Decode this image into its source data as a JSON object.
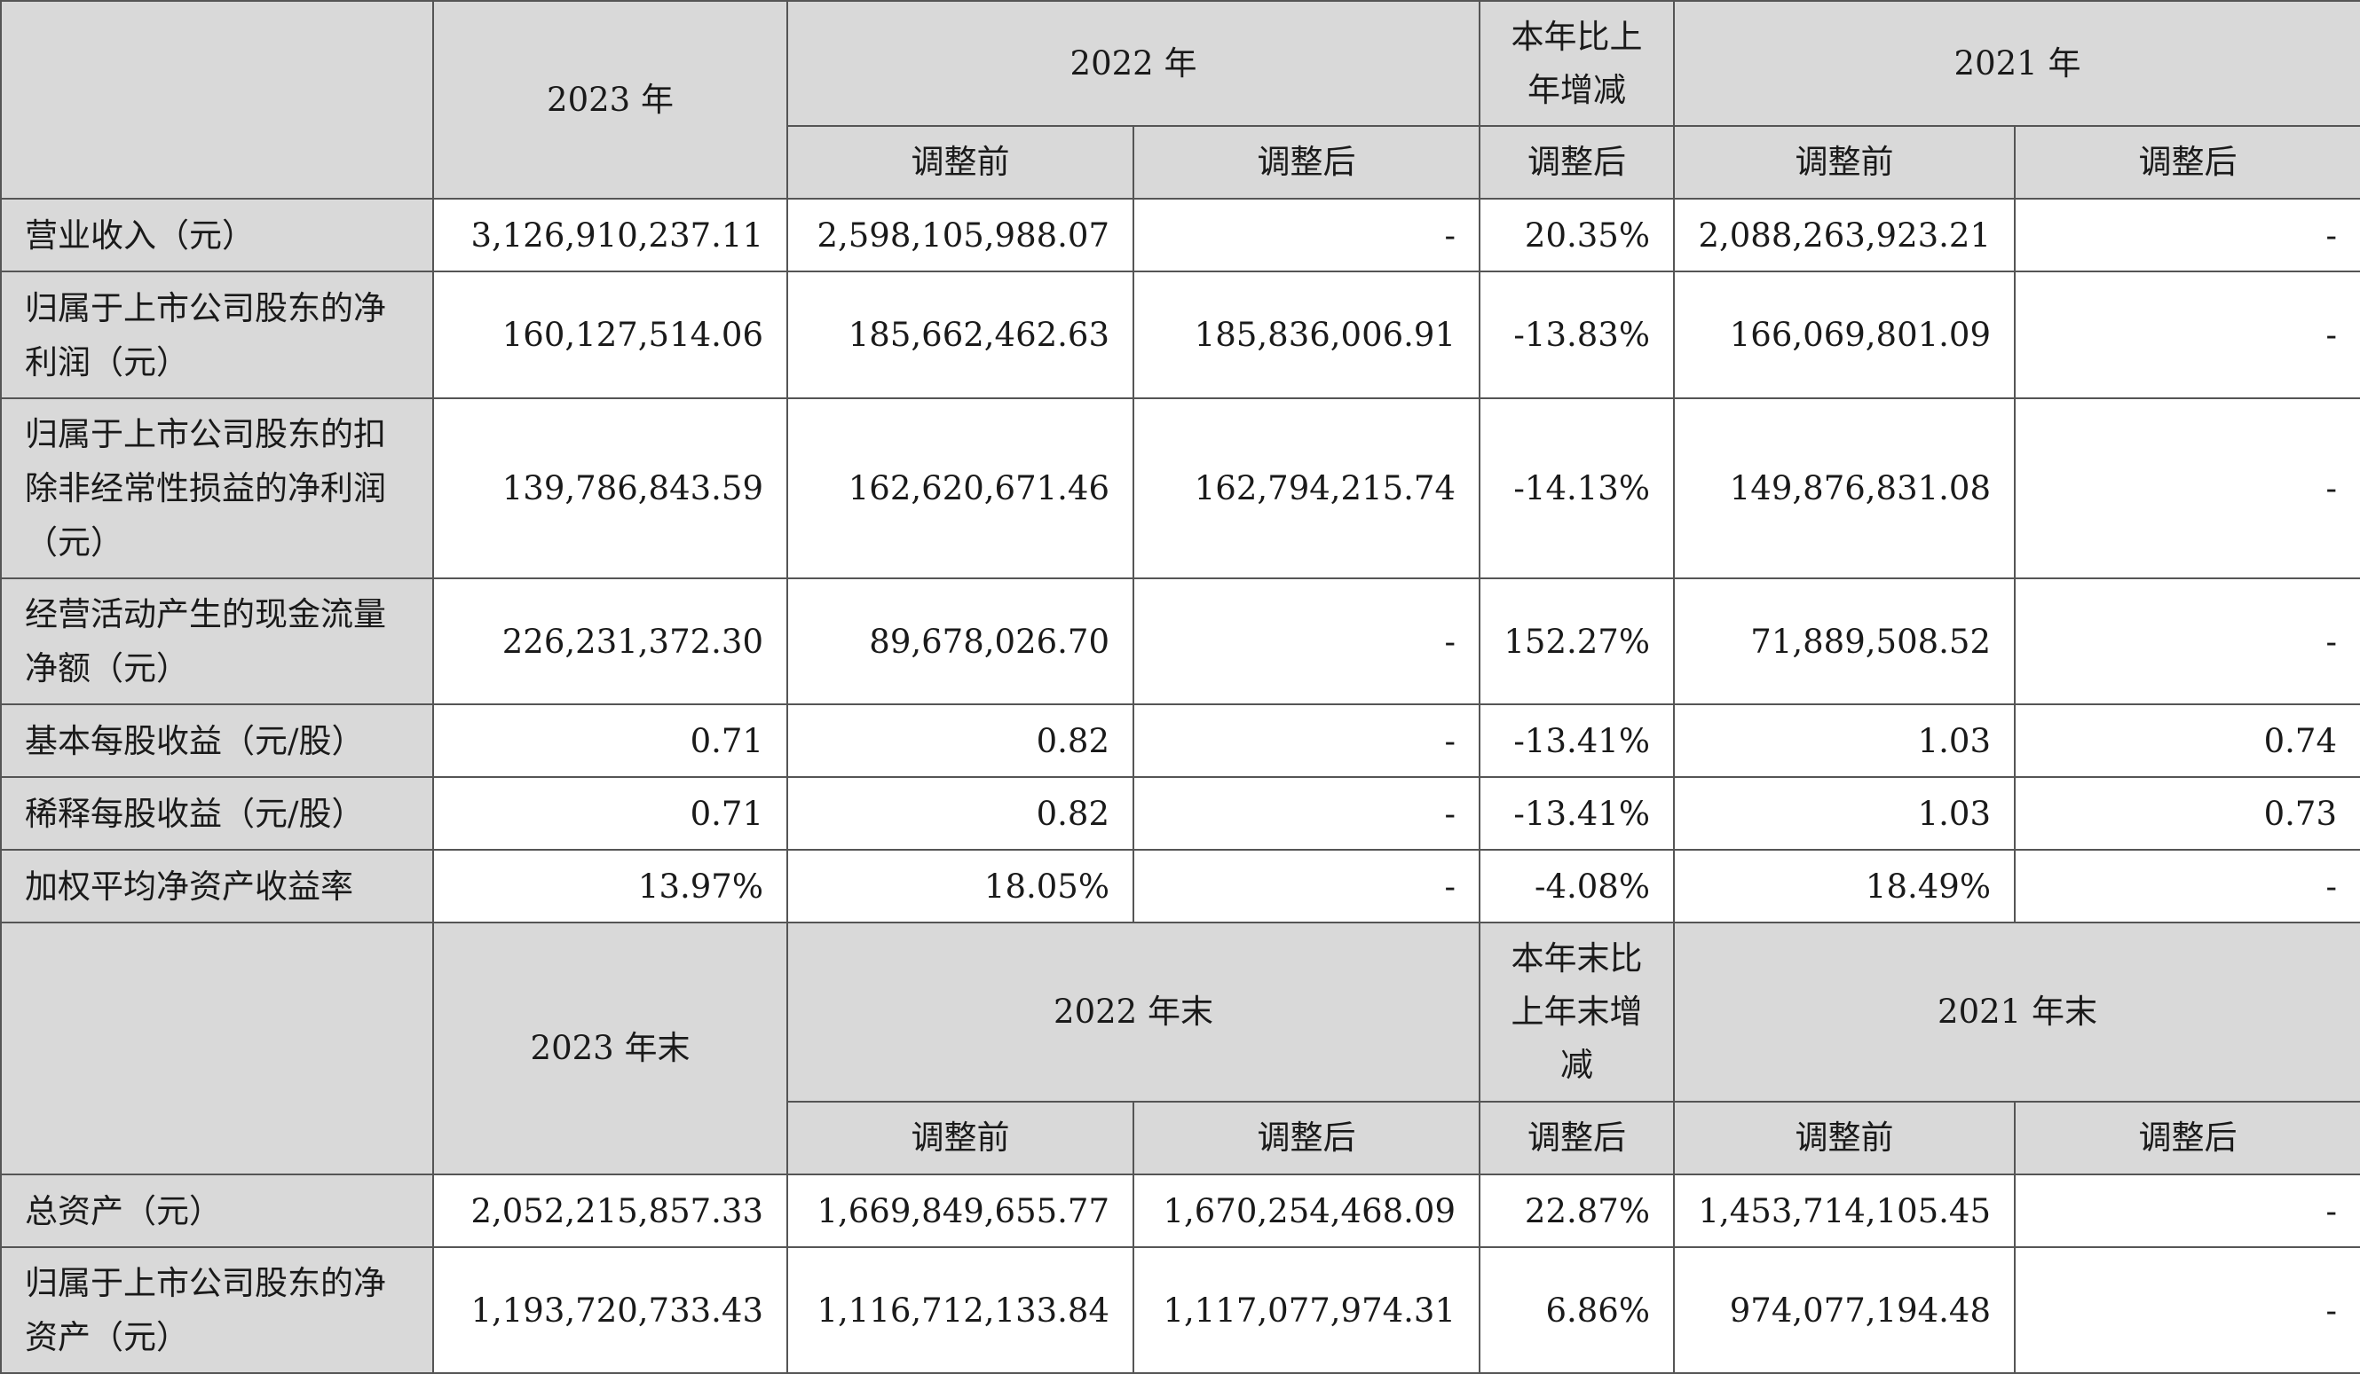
{
  "header1": {
    "col_2023": "2023 年",
    "col_2022": "2022 年",
    "col_change": "本年比上年增减",
    "col_2021": "2021 年",
    "sub_before": "调整前",
    "sub_after": "调整后"
  },
  "rows1": [
    {
      "label": "营业收入（元）",
      "v2023": "3,126,910,237.11",
      "v2022b": "2,598,105,988.07",
      "v2022a": "-",
      "chg": "20.35%",
      "v2021b": "2,088,263,923.21",
      "v2021a": "-"
    },
    {
      "label": "归属于上市公司股东的净利润（元）",
      "v2023": "160,127,514.06",
      "v2022b": "185,662,462.63",
      "v2022a": "185,836,006.91",
      "chg": "-13.83%",
      "v2021b": "166,069,801.09",
      "v2021a": "-"
    },
    {
      "label": "归属于上市公司股东的扣除非经常性损益的净利润（元）",
      "v2023": "139,786,843.59",
      "v2022b": "162,620,671.46",
      "v2022a": "162,794,215.74",
      "chg": "-14.13%",
      "v2021b": "149,876,831.08",
      "v2021a": "-"
    },
    {
      "label": "经营活动产生的现金流量净额（元）",
      "v2023": "226,231,372.30",
      "v2022b": "89,678,026.70",
      "v2022a": "-",
      "chg": "152.27%",
      "v2021b": "71,889,508.52",
      "v2021a": "-"
    },
    {
      "label": "基本每股收益（元/股）",
      "v2023": "0.71",
      "v2022b": "0.82",
      "v2022a": "-",
      "chg": "-13.41%",
      "v2021b": "1.03",
      "v2021a": "0.74"
    },
    {
      "label": "稀释每股收益（元/股）",
      "v2023": "0.71",
      "v2022b": "0.82",
      "v2022a": "-",
      "chg": "-13.41%",
      "v2021b": "1.03",
      "v2021a": "0.73"
    },
    {
      "label": "加权平均净资产收益率",
      "v2023": "13.97%",
      "v2022b": "18.05%",
      "v2022a": "-",
      "chg": "-4.08%",
      "v2021b": "18.49%",
      "v2021a": "-"
    }
  ],
  "header2": {
    "col_2023": "2023 年末",
    "col_2022": "2022 年末",
    "col_change": "本年末比上年末增减",
    "col_2021": "2021 年末",
    "sub_before": "调整前",
    "sub_after": "调整后"
  },
  "rows2": [
    {
      "label": "总资产（元）",
      "v2023": "2,052,215,857.33",
      "v2022b": "1,669,849,655.77",
      "v2022a": "1,670,254,468.09",
      "chg": "22.87%",
      "v2021b": "1,453,714,105.45",
      "v2021a": "-"
    },
    {
      "label": "归属于上市公司股东的净资产（元）",
      "v2023": "1,193,720,733.43",
      "v2022b": "1,116,712,133.84",
      "v2022a": "1,117,077,974.31",
      "chg": "6.86%",
      "v2021b": "974,077,194.48",
      "v2021a": "-"
    }
  ]
}
